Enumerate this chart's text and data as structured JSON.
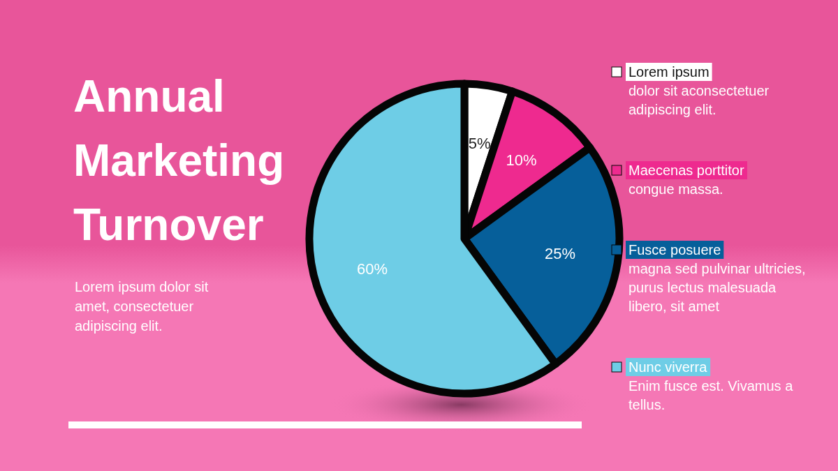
{
  "chart_data": {
    "type": "pie",
    "title": "Annual Marketing Turnover",
    "subtitle": "Lorem ipsum dolor sit amet, consectetuer adipiscing elit.",
    "categories": [
      "Lorem ipsum",
      "Maecenas porttitor",
      "Fusce posuere",
      "Nunc viverra"
    ],
    "values": [
      5,
      10,
      25,
      60
    ],
    "colors": [
      "#ffffff",
      "#ee2a8f",
      "#065f9a",
      "#6ecde6"
    ],
    "value_labels": [
      "5%",
      "10%",
      "25%",
      "60%"
    ],
    "legend": "right",
    "annotations": [
      "dolor sit aconsectetuer adipiscing elit.",
      "congue massa.",
      "magna sed pulvinar ultricies, purus lectus malesuada libero, sit amet",
      "Enim fusce est. Vivamus a tellus."
    ]
  }
}
